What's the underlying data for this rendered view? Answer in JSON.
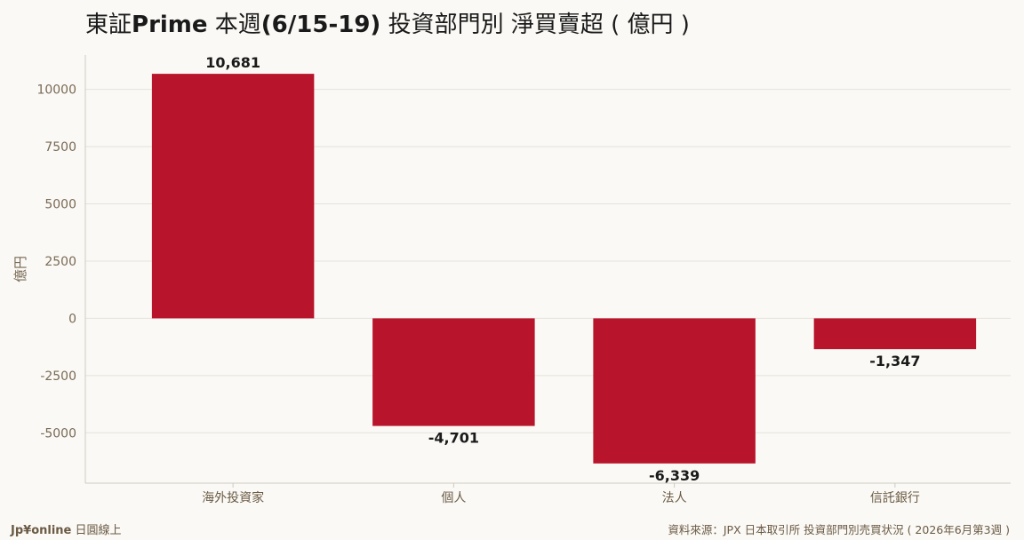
{
  "title": {
    "part1": "東証",
    "part2": "Prime",
    "part3": " 本週",
    "part4": "(6/15-19)",
    "part5": " 投資部門別 淨買賣超 ( 億円 )"
  },
  "footer": {
    "brand_name": "Jp¥online",
    "brand_sub": " 日圓線上",
    "source": "資料來源：JPX 日本取引所 投資部門別売買状況 ( 2026年6月第3週 )"
  },
  "colors": {
    "bar": "#b8142b",
    "grid": "#e6e2da",
    "axis": "#cfcac0",
    "background": "#faf9f5"
  },
  "chart_data": {
    "type": "bar",
    "title": "東証Prime 本週(6/15-19) 投資部門別 淨買賣超 ( 億円 )",
    "xlabel": "",
    "ylabel": "億円",
    "categories": [
      "海外投資家",
      "個人",
      "法人",
      "信託銀行"
    ],
    "values": [
      10681,
      -4701,
      -6339,
      -1347
    ],
    "value_labels": [
      "10,681",
      "-4,701",
      "-6,339",
      "-1,347"
    ],
    "yticks": [
      -5000,
      -2500,
      0,
      2500,
      5000,
      7500,
      10000
    ],
    "ytick_labels": [
      "-5000",
      "-2500",
      "0",
      "2500",
      "5000",
      "7500",
      "10000"
    ],
    "ylim": [
      -7200,
      11500
    ],
    "grid": true,
    "legend": "none"
  }
}
